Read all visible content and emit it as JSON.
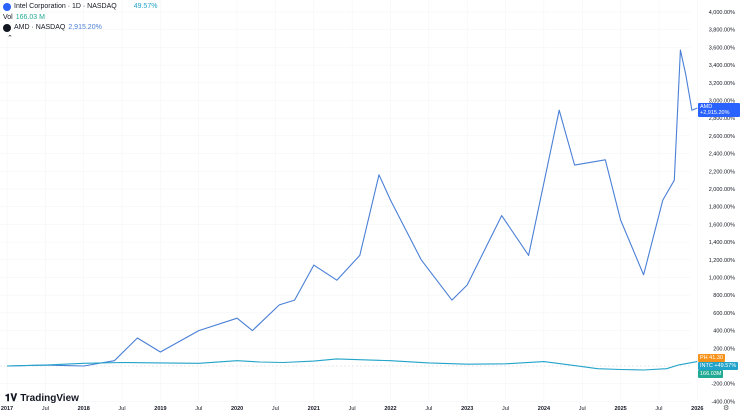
{
  "legend": {
    "main": {
      "title": "Intel Corporation · 1D · NASDAQ",
      "change": "49.57%",
      "color": "#2962ff"
    },
    "vol": {
      "label": "Vol",
      "value": "166.03 M"
    },
    "compare": {
      "title": "AMD · NASDAQ",
      "change": "2,915.20%"
    }
  },
  "price_labels": {
    "amd": {
      "symbol": "AMD",
      "value": "+2,915.20%",
      "color": "#2962ff"
    },
    "ph": {
      "symbol": "PH",
      "value": "41.30",
      "color": "#f7931a"
    },
    "intc": {
      "symbol": "INTC",
      "value": "+49.57%",
      "color": "#22ab94"
    },
    "vol": {
      "value": "166.03M",
      "color": "#22ab94"
    }
  },
  "brand": "TradingView",
  "chart_data": {
    "type": "line",
    "ylim": [
      -400,
      4000
    ],
    "y_ticks": [
      "4,000.00%",
      "3,800.00%",
      "3,600.00%",
      "3,400.00%",
      "3,200.00%",
      "3,000.00%",
      "2,800.00%",
      "2,600.00%",
      "2,400.00%",
      "2,200.00%",
      "2,000.00%",
      "1,800.00%",
      "1,600.00%",
      "1,400.00%",
      "1,200.00%",
      "1,000.00%",
      "800.00%",
      "600.00%",
      "400.00%",
      "200.00%",
      "-200.00%",
      "-400.00%"
    ],
    "x_ticks": [
      "2017",
      "Jul",
      "2018",
      "Jul",
      "2019",
      "Jul",
      "2020",
      "Jul",
      "2021",
      "Jul",
      "2022",
      "Jul",
      "2023",
      "Jul",
      "2024",
      "Jul",
      "2025",
      "Jul",
      "2026"
    ],
    "series": [
      {
        "name": "AMD",
        "color": "#4a7fd6",
        "x": [
          2017.0,
          2017.5,
          2018.0,
          2018.4,
          2018.7,
          2019.0,
          2019.5,
          2020.0,
          2020.2,
          2020.55,
          2020.75,
          2021.0,
          2021.3,
          2021.6,
          2021.85,
          2022.0,
          2022.4,
          2022.8,
          2023.0,
          2023.45,
          2023.8,
          2024.2,
          2024.4,
          2024.8,
          2025.0,
          2025.3,
          2025.55,
          2025.7,
          2025.78,
          2025.85,
          2025.93,
          2026.0
        ],
        "y": [
          0,
          10,
          0,
          60,
          316,
          158,
          400,
          540,
          400,
          690,
          745,
          1140,
          970,
          1250,
          2160,
          1875,
          1200,
          745,
          915,
          1700,
          1250,
          2890,
          2270,
          2330,
          1650,
          1030,
          1875,
          2100,
          3570,
          3290,
          2890,
          2915
        ]
      },
      {
        "name": "INTC",
        "color": "#22a3c9",
        "x": [
          2017.0,
          2017.5,
          2018.0,
          2018.5,
          2019.0,
          2019.5,
          2020.0,
          2020.3,
          2020.6,
          2021.0,
          2021.3,
          2022.0,
          2022.5,
          2023.0,
          2023.5,
          2024.0,
          2024.4,
          2024.7,
          2025.0,
          2025.3,
          2025.6,
          2025.75,
          2026.0
        ],
        "y": [
          0,
          10,
          30,
          40,
          35,
          30,
          60,
          45,
          40,
          55,
          80,
          60,
          35,
          20,
          25,
          50,
          5,
          -30,
          -40,
          -45,
          -30,
          10,
          49.57
        ]
      }
    ]
  }
}
